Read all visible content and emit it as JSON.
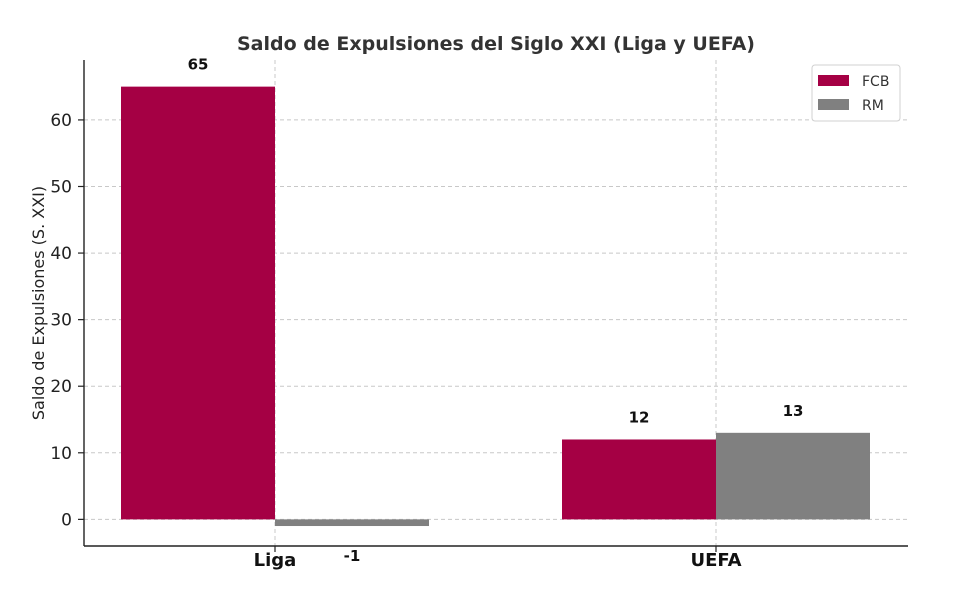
{
  "chart_data": {
    "type": "bar",
    "title": "Saldo de Expulsiones del Siglo XXI (Liga y UEFA)",
    "xlabel": "",
    "ylabel": "Saldo de Expulsiones (S. XXI)",
    "categories": [
      "Liga",
      "UEFA"
    ],
    "series": [
      {
        "name": "FCB",
        "color": "#a50044",
        "values": [
          65,
          12
        ],
        "labels": [
          "65",
          "12"
        ]
      },
      {
        "name": "RM",
        "color": "#808080",
        "values": [
          -1,
          13
        ],
        "labels": [
          "-1",
          "13"
        ]
      }
    ],
    "ylim": [
      -4,
      69
    ],
    "yticks": [
      0,
      10,
      20,
      30,
      40,
      50,
      60
    ],
    "grid": true,
    "legend": "top-right"
  }
}
